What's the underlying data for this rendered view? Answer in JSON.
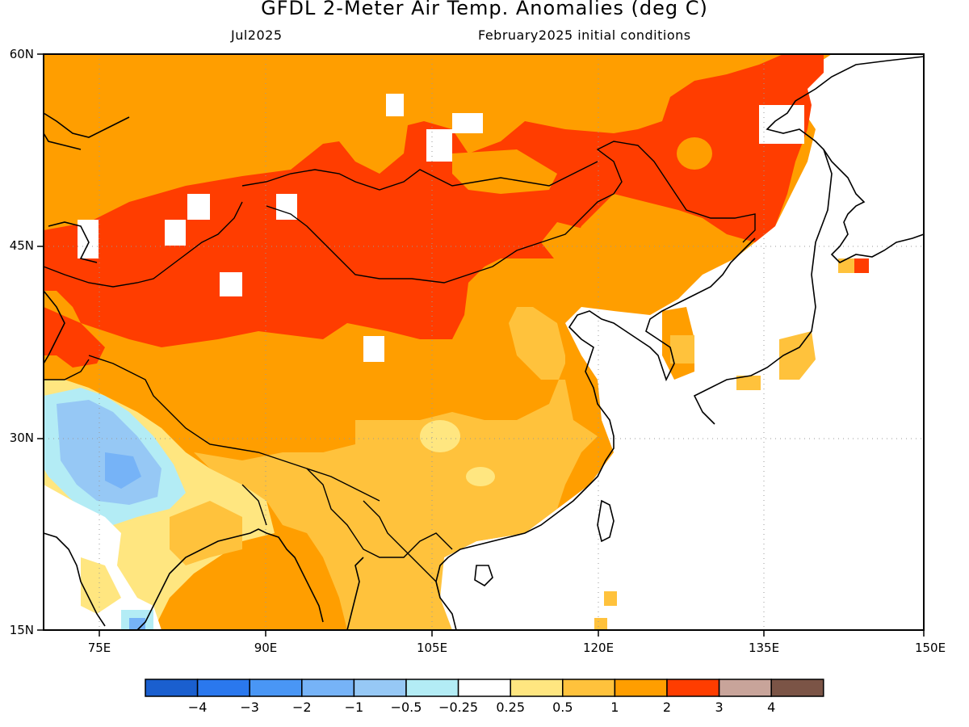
{
  "header": {
    "title": "GFDL 2-Meter Air Temp. Anomalies (deg C)",
    "valid_month": "Jul2025",
    "init": "February2025 initial conditions"
  },
  "map": {
    "lat_labels": [
      "60N",
      "45N",
      "30N",
      "15N"
    ],
    "lon_labels": [
      "75E",
      "90E",
      "105E",
      "120E",
      "135E",
      "150E"
    ],
    "lat_range": [
      15,
      60
    ],
    "lon_range": [
      70,
      150
    ],
    "projection": "cylindrical",
    "grid": "dotted"
  },
  "colorbar": {
    "labels": [
      "−4",
      "−3",
      "−2",
      "−1",
      "−0.5",
      "−0.25",
      "0.25",
      "0.5",
      "1",
      "2",
      "3",
      "4"
    ],
    "colors": [
      "#1a5fcf",
      "#2a78ee",
      "#4996f5",
      "#76b3f7",
      "#96c8f5",
      "#b3ecf5",
      "#ffffff",
      "#ffe680",
      "#ffc23c",
      "#ff9e00",
      "#ff3d00",
      "#c8a49a",
      "#7b5446"
    ]
  }
}
